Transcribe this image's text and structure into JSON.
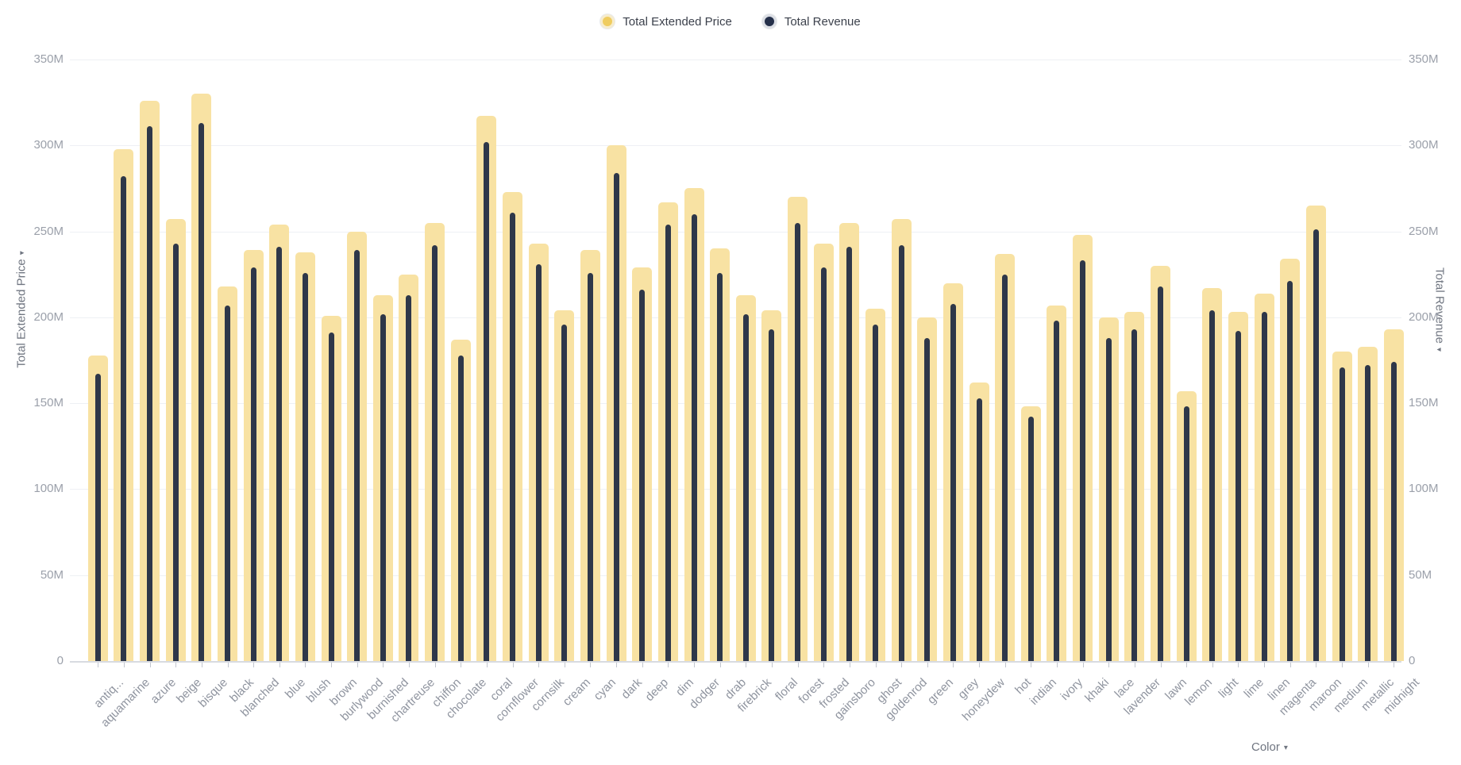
{
  "legend": {
    "items": [
      {
        "label": "Total Extended Price",
        "dot_color": "#efcc5f",
        "ring_color": "#f7eccc"
      },
      {
        "label": "Total Revenue",
        "dot_color": "#25304 1",
        "ring_color": "#dcdfe5"
      }
    ]
  },
  "axes": {
    "left_title": "Total Extended Price",
    "right_title": "Total Revenue",
    "x_title": "Color",
    "sort_arrow": "▾",
    "y_tick_labels": [
      "0",
      "50M",
      "100M",
      "150M",
      "200M",
      "250M",
      "300M",
      "350M"
    ]
  },
  "chart_data": {
    "type": "bar",
    "title": "",
    "xlabel": "Color",
    "ylabel_left": "Total Extended Price",
    "ylabel_right": "Total Revenue",
    "ylim": [
      0,
      350
    ],
    "y_unit": "M",
    "y_ticks": [
      0,
      50,
      100,
      150,
      200,
      250,
      300,
      350
    ],
    "grid": true,
    "legend_position": "top-center",
    "categories": [
      "antiq...",
      "aquamarine",
      "azure",
      "beige",
      "bisque",
      "black",
      "blanched",
      "blue",
      "blush",
      "brown",
      "burlywood",
      "burnished",
      "chartreuse",
      "chiffon",
      "chocolate",
      "coral",
      "cornflower",
      "cornsilk",
      "cream",
      "cyan",
      "dark",
      "deep",
      "dim",
      "dodger",
      "drab",
      "firebrick",
      "floral",
      "forest",
      "frosted",
      "gainsboro",
      "ghost",
      "goldenrod",
      "green",
      "grey",
      "honeydew",
      "hot",
      "indian",
      "ivory",
      "khaki",
      "lace",
      "lavender",
      "lawn",
      "lemon",
      "light",
      "lime",
      "linen",
      "magenta",
      "maroon",
      "medium",
      "metallic",
      "midnight"
    ],
    "series": [
      {
        "name": "Total Extended Price",
        "color": "#f8e2a3",
        "values": [
          178,
          298,
          326,
          257,
          330,
          218,
          239,
          254,
          238,
          201,
          250,
          213,
          225,
          255,
          187,
          317,
          273,
          243,
          204,
          239,
          300,
          229,
          267,
          275,
          240,
          213,
          204,
          270,
          243,
          255,
          205,
          257,
          200,
          220,
          162,
          237,
          148,
          207,
          248,
          200,
          203,
          230,
          157,
          217,
          203,
          214,
          234,
          265,
          180,
          183,
          193
        ]
      },
      {
        "name": "Total Revenue",
        "color": "#2e3749",
        "values": [
          167,
          282,
          311,
          243,
          313,
          207,
          229,
          241,
          226,
          191,
          239,
          202,
          213,
          242,
          178,
          302,
          261,
          231,
          196,
          226,
          284,
          216,
          254,
          260,
          226,
          202,
          193,
          255,
          229,
          241,
          196,
          242,
          188,
          208,
          153,
          225,
          142,
          198,
          233,
          188,
          193,
          218,
          148,
          204,
          192,
          203,
          221,
          251,
          171,
          172,
          174
        ]
      }
    ]
  }
}
